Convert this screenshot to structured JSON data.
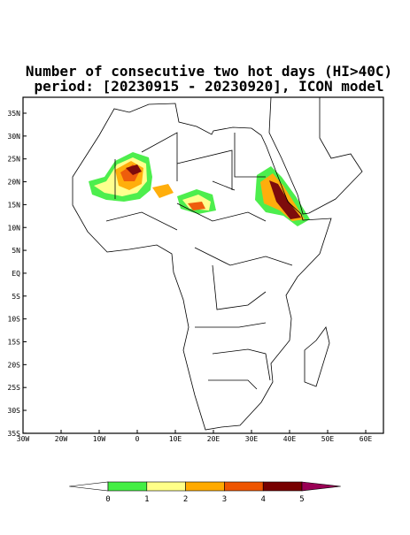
{
  "header": {
    "title": "Number of consecutive two hot days (HI>40C)",
    "subtitle": "period: [20230915 - 20230920], ICON model"
  },
  "map": {
    "lat_labels": [
      "35N",
      "30N",
      "25N",
      "20N",
      "15N",
      "10N",
      "5N",
      "EQ",
      "5S",
      "10S",
      "15S",
      "20S",
      "25S",
      "30S",
      "35S"
    ],
    "lon_labels": [
      "30W",
      "20W",
      "10W",
      "0",
      "10E",
      "20E",
      "30E",
      "40E",
      "50E",
      "60E"
    ]
  },
  "colorbar": {
    "levels": [
      0,
      1,
      2,
      3,
      4,
      5
    ],
    "colors": [
      "#ffffff",
      "#44ee44",
      "#ffff88",
      "#ffaa00",
      "#ee5500",
      "#770000",
      "#990055"
    ]
  }
}
